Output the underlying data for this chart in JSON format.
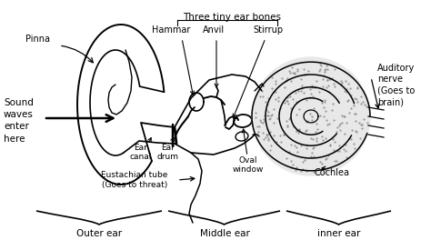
{
  "bg_color": "#ffffff",
  "line_color": "#000000",
  "figsize": [
    4.74,
    2.75
  ],
  "dpi": 100,
  "labels": {
    "three_tiny": "Three tiny ear bones",
    "pinna": "Pinna",
    "hammar": "Hammar",
    "anvil": "Anvil",
    "stirrup": "Stirrup",
    "sound_waves": "Sound\nwaves\nenter\nhere",
    "ear_canal": "Ear\ncanal",
    "ear_drum": "Ear\ndrum",
    "eustachian": "Eustachian tube\n(Goes to threat)",
    "oval_window": "Oval\nwindow",
    "cochlea": "Cochlea",
    "auditory": "Auditory\nnerve\n(Goes to\nbrain)",
    "outer_ear": "Outer ear",
    "middle_ear": "Middle ear",
    "inner_ear": "inner ear"
  },
  "font_size": 7.0,
  "xlim": [
    0,
    474
  ],
  "ylim": [
    0,
    275
  ]
}
